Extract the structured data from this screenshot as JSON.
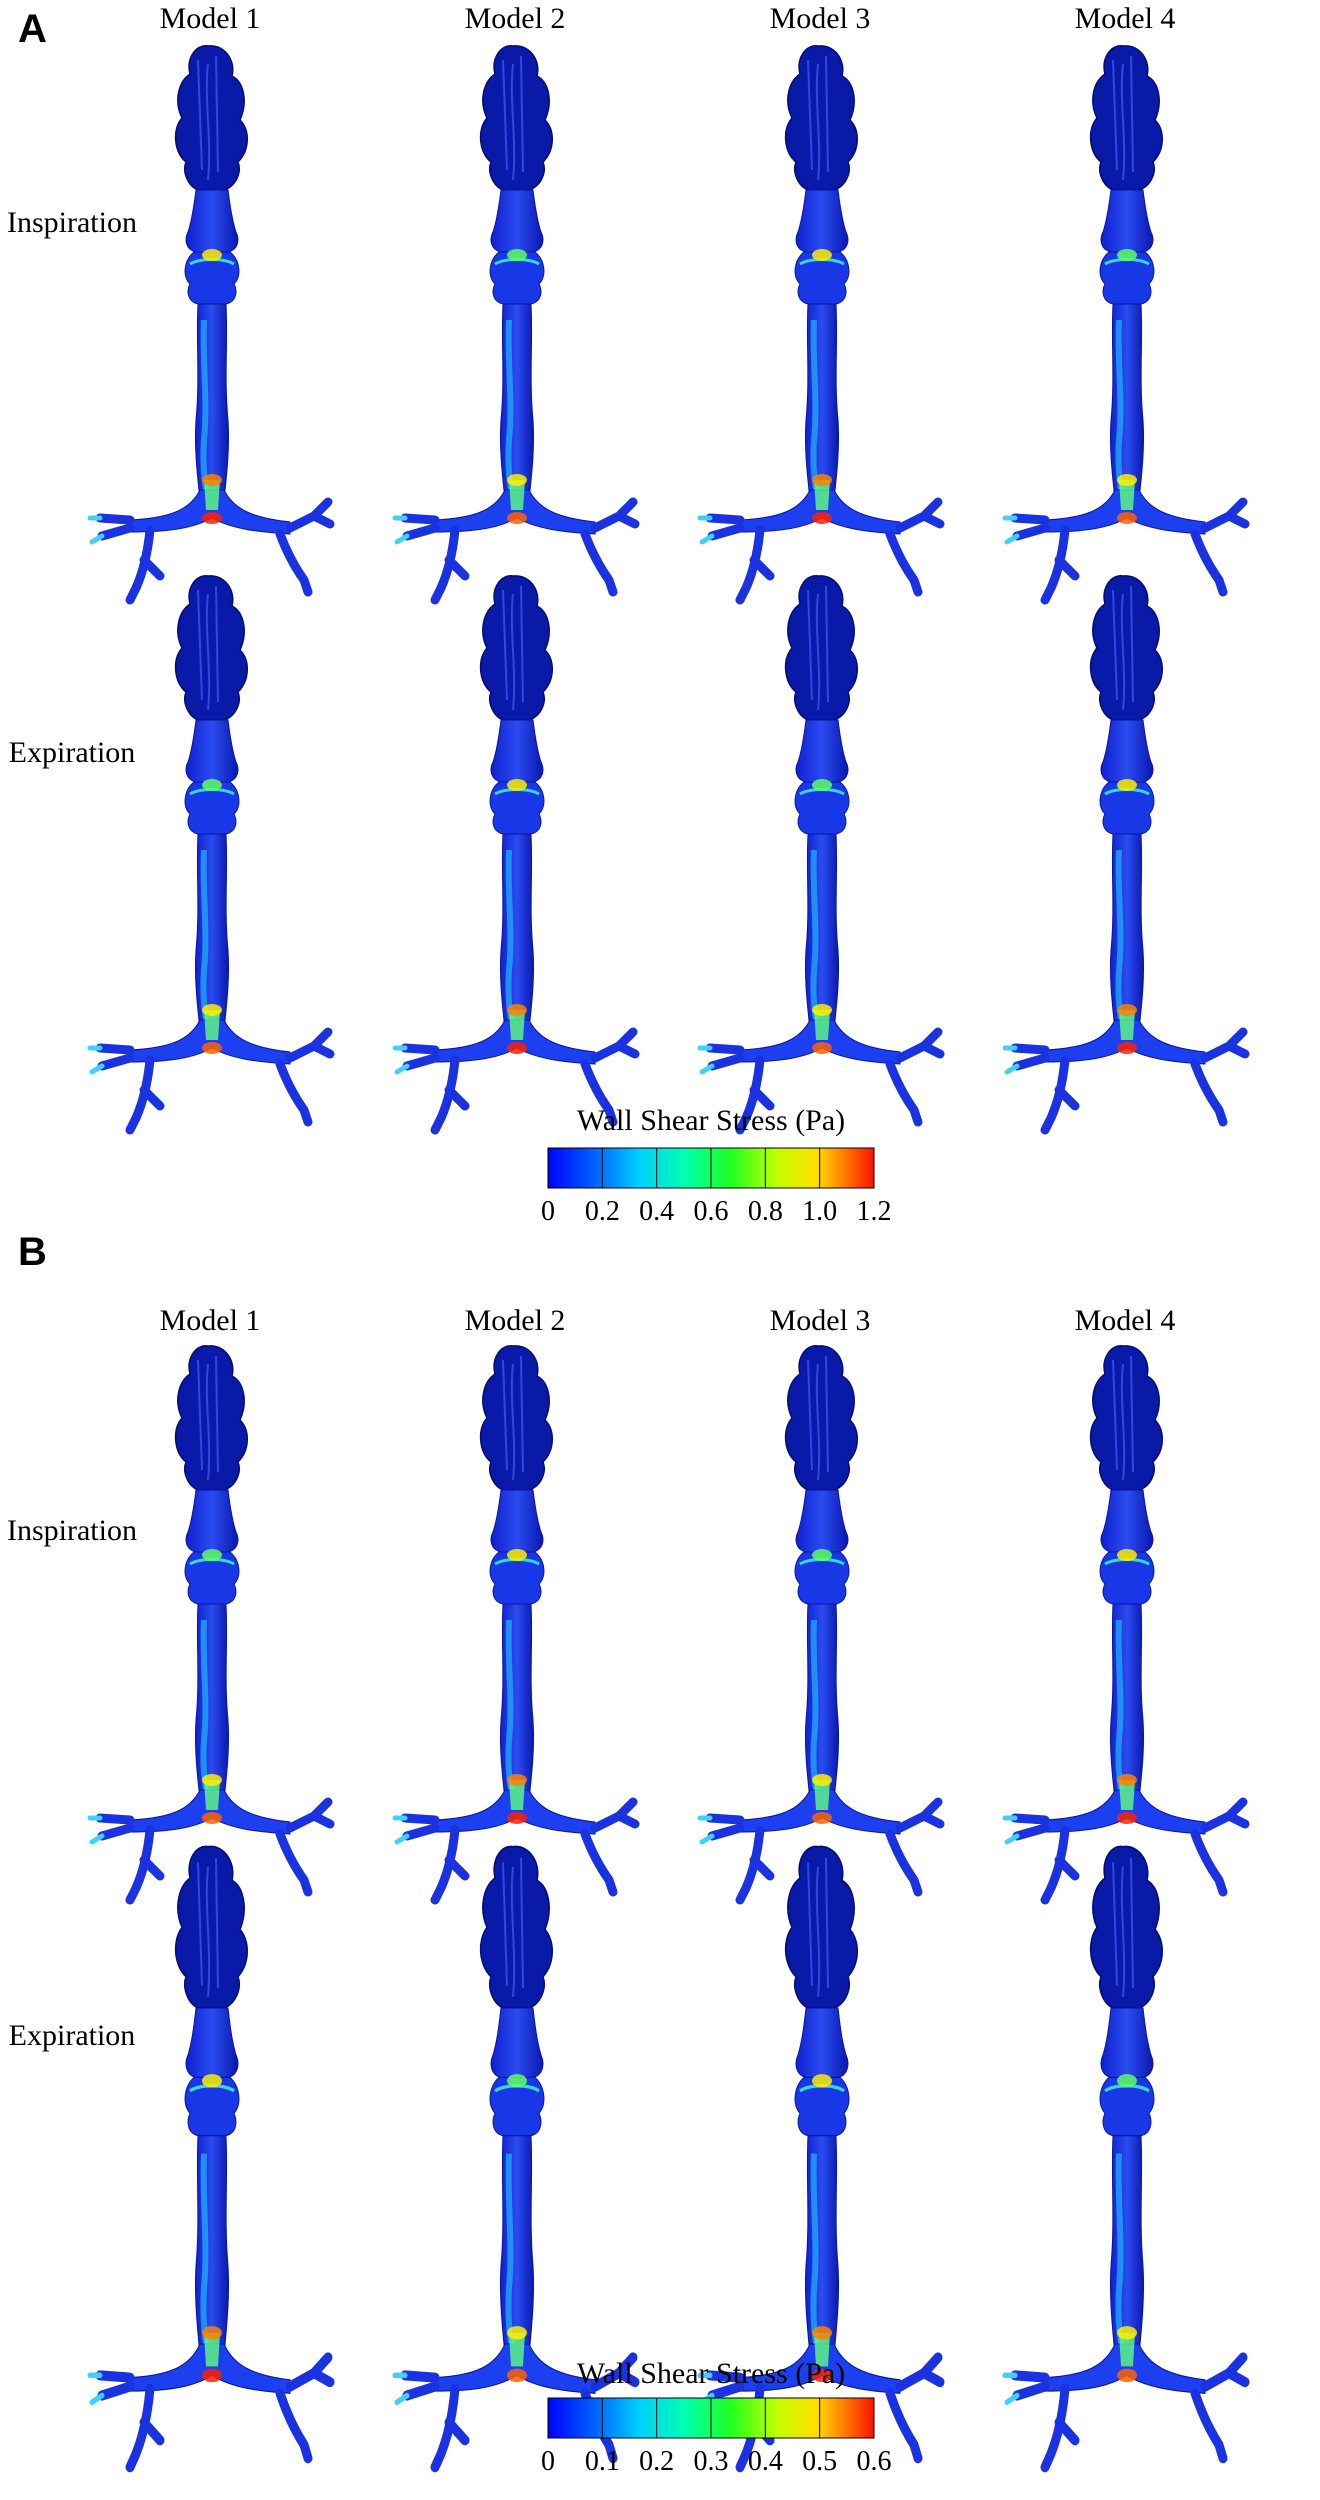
{
  "panels": [
    {
      "letter": "A",
      "columns": [
        "Model 1",
        "Model 2",
        "Model 3",
        "Model 4"
      ],
      "rows": [
        "Inspiration",
        "Expiration"
      ],
      "colorbar": {
        "title": "Wall Shear Stress (Pa)",
        "ticks": [
          "0",
          "0.2",
          "0.4",
          "0.6",
          "0.8",
          "1.0",
          "1.2"
        ],
        "min": 0,
        "max": 1.2
      }
    },
    {
      "letter": "B",
      "columns": [
        "Model 1",
        "Model 2",
        "Model 3",
        "Model 4"
      ],
      "rows": [
        "Inspiration",
        "Expiration"
      ],
      "colorbar": {
        "title": "Wall Shear Stress (Pa)",
        "ticks": [
          "0",
          "0.1",
          "0.2",
          "0.3",
          "0.4",
          "0.5",
          "0.6"
        ],
        "min": 0,
        "max": 0.6
      }
    }
  ],
  "colormap": [
    "#0000ff",
    "#0080ff",
    "#00ffff",
    "#00ff80",
    "#00ff00",
    "#80ff00",
    "#ffff00",
    "#ff8000",
    "#ff0000"
  ]
}
